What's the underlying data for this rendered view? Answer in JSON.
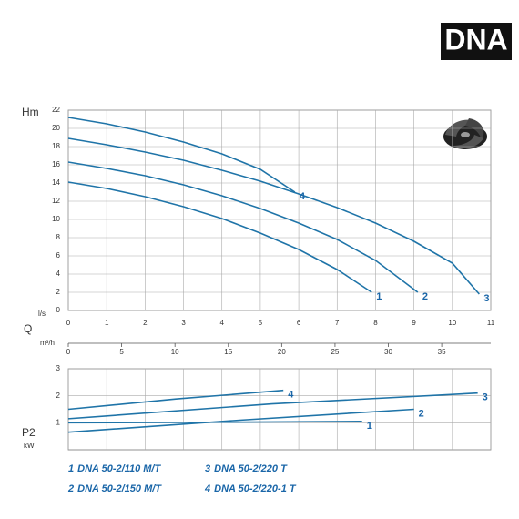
{
  "brand": "DNA",
  "chart_data": [
    {
      "type": "line",
      "ylabel": "Hm",
      "xlabel": "l/s",
      "xlim": [
        0,
        11
      ],
      "xticks": [
        0,
        1,
        2,
        3,
        4,
        5,
        6,
        7,
        8,
        9,
        10,
        11
      ],
      "ylim": [
        0,
        22
      ],
      "yticks": [
        0,
        2,
        4,
        6,
        8,
        10,
        12,
        14,
        16,
        18,
        20,
        22
      ],
      "x2label": "Q",
      "x2unit": "m³/h",
      "x2lim": [
        0,
        39.6
      ],
      "x2ticks": [
        0,
        5,
        10,
        15,
        20,
        25,
        30,
        35
      ],
      "grid": true,
      "series": [
        {
          "label": "1",
          "name": "DNA 50-2/110 M/T",
          "color": "#1f74a8",
          "x": [
            0,
            1,
            2,
            3,
            4,
            5,
            6,
            7,
            7.9
          ],
          "values": [
            14.1,
            13.4,
            12.5,
            11.4,
            10.1,
            8.5,
            6.7,
            4.5,
            2.0
          ]
        },
        {
          "label": "2",
          "name": "DNA 50-2/150 M/T",
          "color": "#1f74a8",
          "x": [
            0,
            1,
            2,
            3,
            4,
            5,
            6,
            7,
            8,
            9.1
          ],
          "values": [
            16.3,
            15.6,
            14.8,
            13.8,
            12.6,
            11.2,
            9.6,
            7.8,
            5.5,
            2.0
          ]
        },
        {
          "label": "3",
          "name": "DNA 50-2/220 T",
          "color": "#1f74a8",
          "x": [
            0,
            1,
            2,
            3,
            4,
            5,
            6,
            7,
            8,
            9,
            10,
            10.7
          ],
          "values": [
            18.9,
            18.2,
            17.4,
            16.5,
            15.4,
            14.2,
            12.8,
            11.3,
            9.6,
            7.6,
            5.2,
            1.8
          ]
        },
        {
          "label": "4",
          "name": "DNA 50-2/220-1 T",
          "color": "#1f74a8",
          "x": [
            0,
            1,
            2,
            3,
            4,
            5,
            5.9
          ],
          "values": [
            21.2,
            20.5,
            19.6,
            18.5,
            17.2,
            15.5,
            13.0
          ]
        }
      ]
    },
    {
      "type": "line",
      "ylabel": "P2",
      "yunit": "kW",
      "xlim": [
        0,
        11
      ],
      "xticks": [
        0,
        1,
        2,
        3,
        4,
        5,
        6,
        7,
        8,
        9,
        10,
        11
      ],
      "ylim": [
        0,
        3
      ],
      "yticks": [
        1,
        2,
        3
      ],
      "grid": true,
      "series": [
        {
          "label": "1",
          "color": "#1f74a8",
          "x": [
            0,
            4,
            7.65
          ],
          "values": [
            1.0,
            1.02,
            1.05
          ]
        },
        {
          "label": "2",
          "color": "#1f74a8",
          "x": [
            0,
            4.5,
            9.0
          ],
          "values": [
            0.65,
            1.1,
            1.5
          ]
        },
        {
          "label": "3",
          "color": "#1f74a8",
          "x": [
            0,
            5.3,
            10.66
          ],
          "values": [
            1.15,
            1.7,
            2.1
          ]
        },
        {
          "label": "4",
          "color": "#1f74a8",
          "x": [
            0,
            2.8,
            5.6
          ],
          "values": [
            1.5,
            1.88,
            2.2
          ]
        }
      ]
    }
  ]
}
